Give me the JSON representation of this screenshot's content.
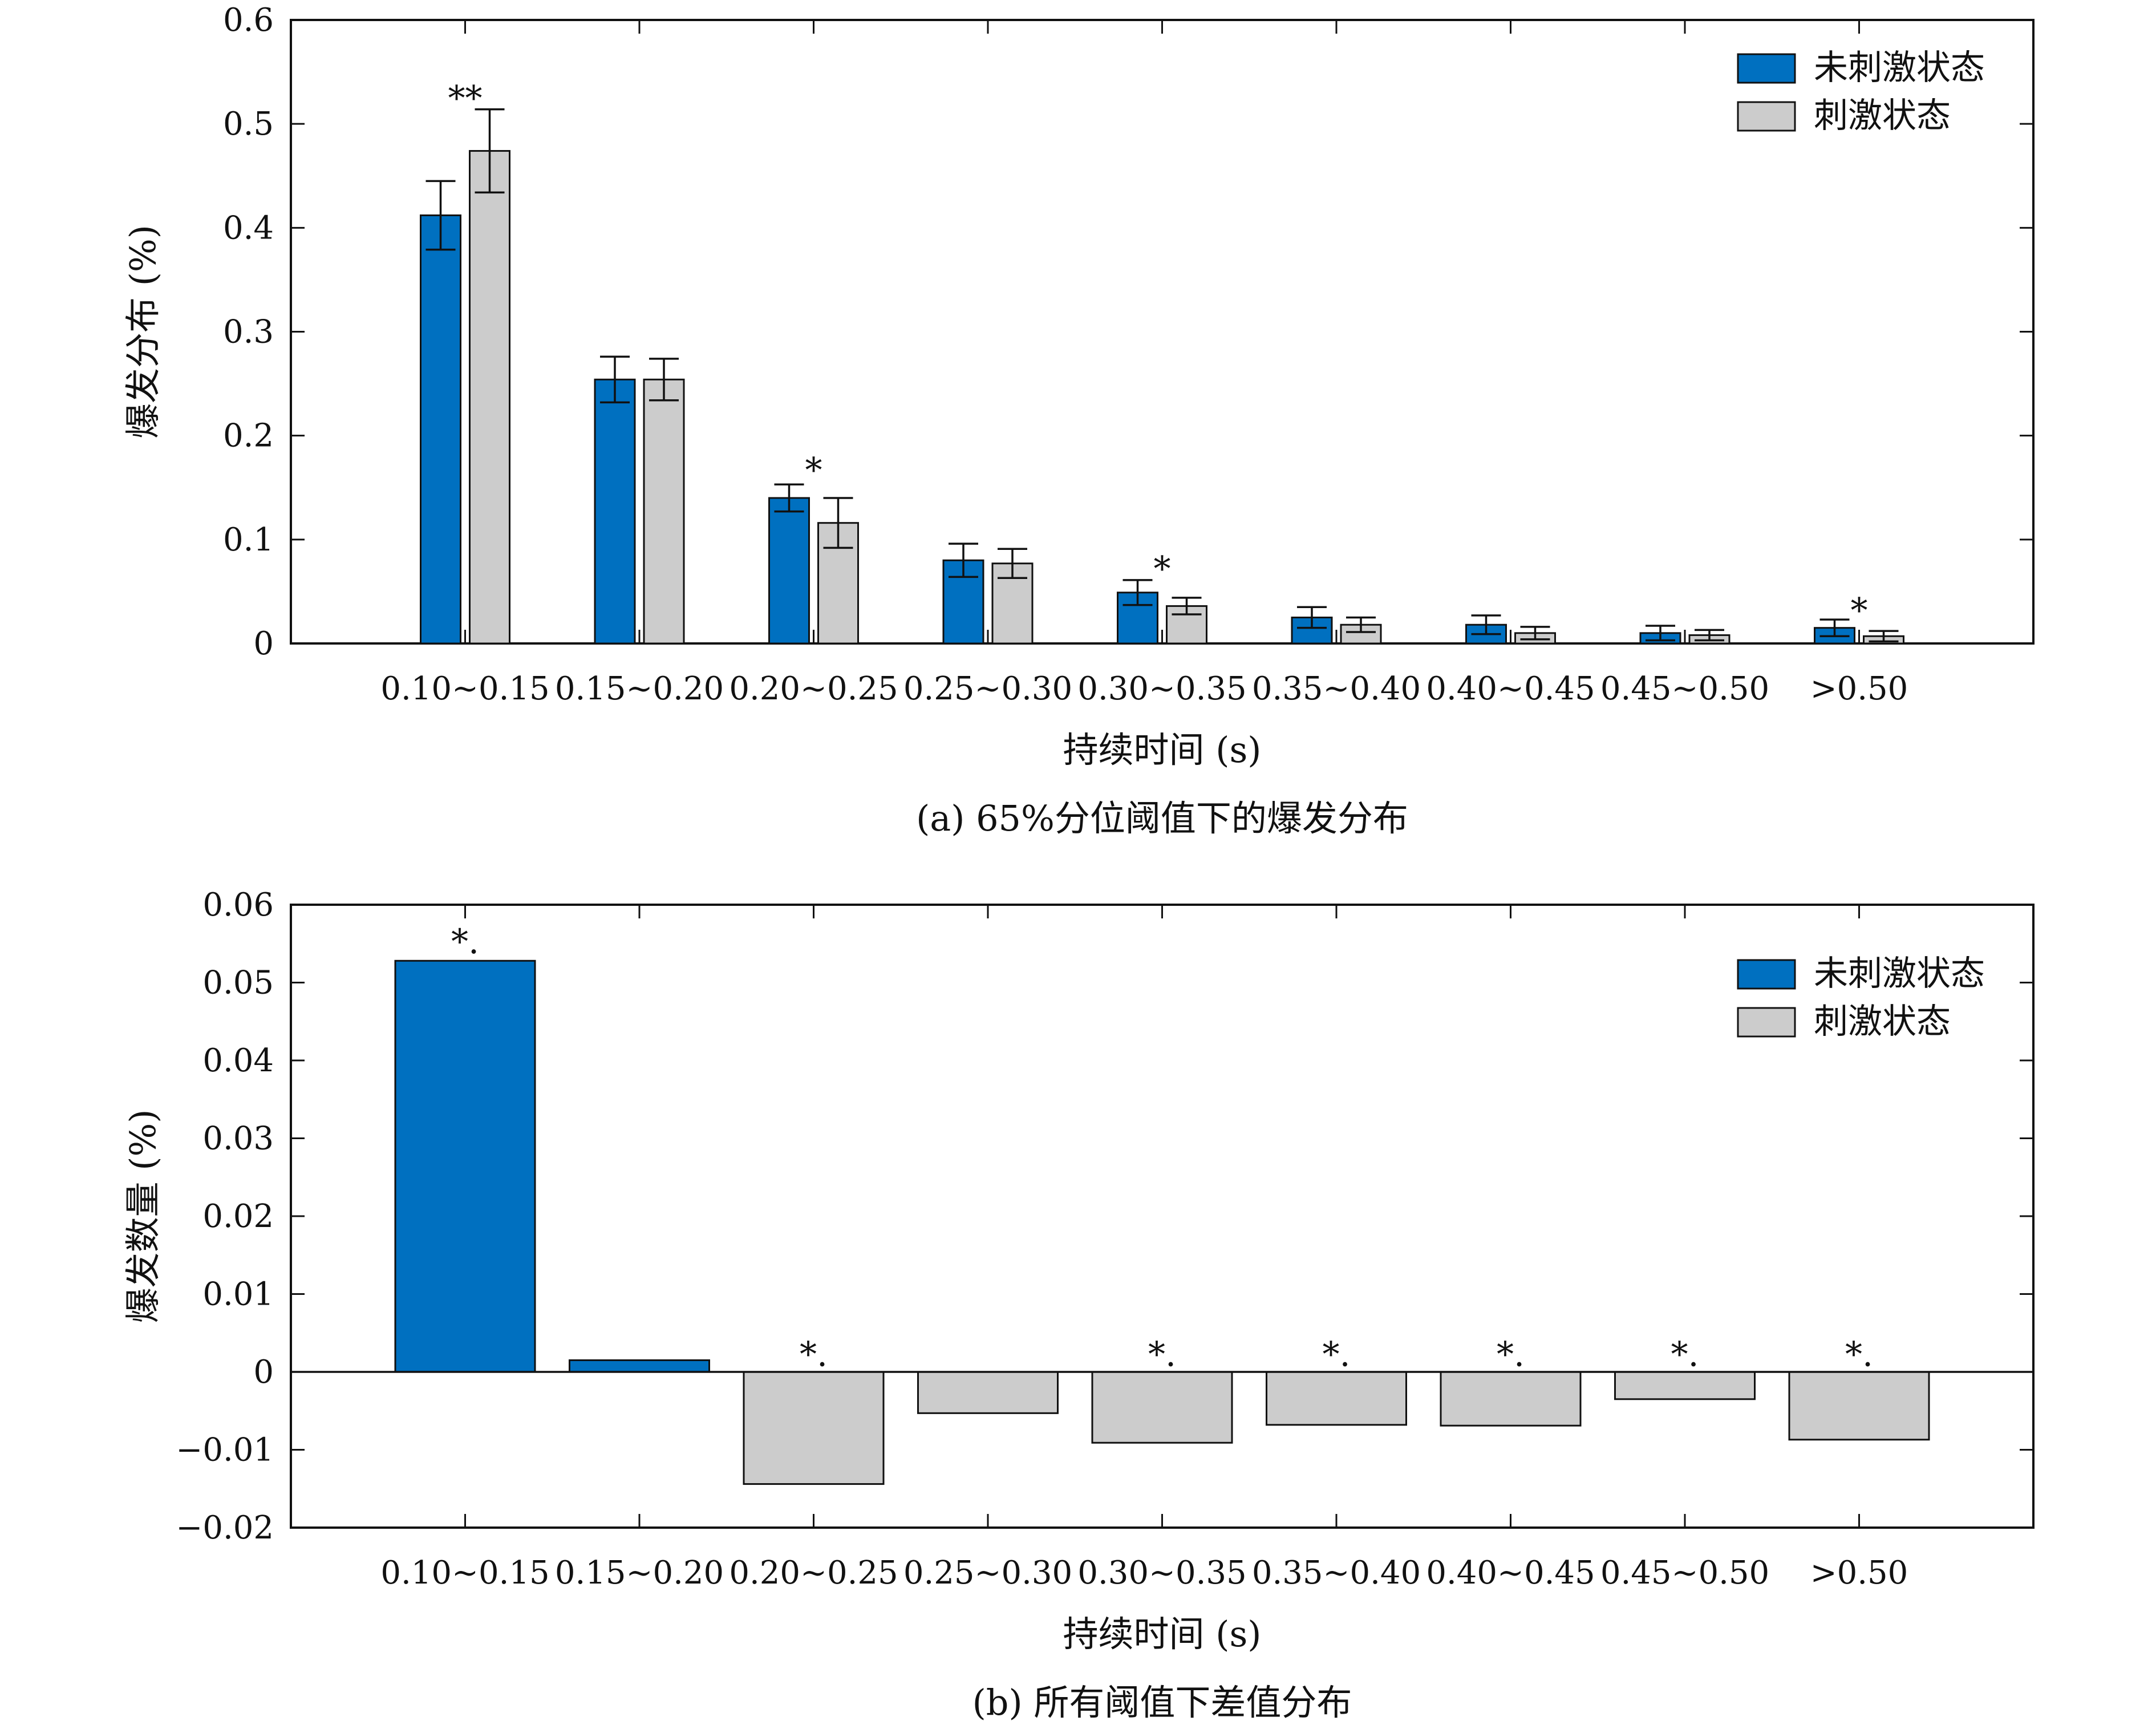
{
  "colors": {
    "unstimulated": "#0070C0",
    "stimulated": "#CCCCCC",
    "axis": "#111111"
  },
  "chart_data": [
    {
      "type": "bar",
      "caption": "(a) 65%分位阈值下的爆发分布",
      "xlabel": "持续时间 (s)",
      "ylabel": "爆发分布 (%)",
      "ylim": [
        0,
        0.6
      ],
      "yticks": [
        0,
        0.1,
        0.2,
        0.3,
        0.4,
        0.5,
        0.6
      ],
      "ytick_labels": [
        "0",
        "0.1",
        "0.2",
        "0.3",
        "0.4",
        "0.5",
        "0.6"
      ],
      "categories": [
        "0.10~0.15",
        "0.15~0.20",
        "0.20~0.25",
        "0.25~0.30",
        "0.30~0.35",
        "0.35~0.40",
        "0.40~0.45",
        "0.45~0.50",
        ">0.50"
      ],
      "legend_position": "top-right",
      "series": [
        {
          "name": "未刺激状态",
          "color": "#0070C0",
          "values": [
            0.412,
            0.254,
            0.14,
            0.08,
            0.049,
            0.025,
            0.018,
            0.01,
            0.015
          ],
          "errors": [
            0.033,
            0.022,
            0.013,
            0.016,
            0.012,
            0.01,
            0.009,
            0.007,
            0.008
          ]
        },
        {
          "name": "刺激状态",
          "color": "#CCCCCC",
          "values": [
            0.474,
            0.254,
            0.116,
            0.077,
            0.036,
            0.018,
            0.01,
            0.008,
            0.007
          ],
          "errors": [
            0.04,
            0.02,
            0.024,
            0.014,
            0.008,
            0.007,
            0.006,
            0.005,
            0.005
          ]
        }
      ],
      "annotations": [
        {
          "category_index": 0,
          "text": "**",
          "y": 0.53
        },
        {
          "category_index": 2,
          "text": "*",
          "y": 0.172
        },
        {
          "category_index": 4,
          "text": "*",
          "y": 0.077
        },
        {
          "category_index": 8,
          "text": "*",
          "y": 0.037
        }
      ]
    },
    {
      "type": "bar",
      "caption": "(b) 所有阈值下差值分布",
      "xlabel": "持续时间 (s)",
      "ylabel": "爆发数量 (%)",
      "ylim": [
        -0.02,
        0.06
      ],
      "yticks": [
        -0.02,
        -0.01,
        0,
        0.01,
        0.02,
        0.03,
        0.04,
        0.05,
        0.06
      ],
      "ytick_labels": [
        "−0.02",
        "−0.01",
        "0",
        "0.01",
        "0.02",
        "0.03",
        "0.04",
        "0.05",
        "0.06"
      ],
      "categories": [
        "0.10~0.15",
        "0.15~0.20",
        "0.20~0.25",
        "0.25~0.30",
        "0.30~0.35",
        "0.35~0.40",
        "0.40~0.45",
        "0.45~0.50",
        ">0.50"
      ],
      "legend_position": "top-right",
      "legend": [
        {
          "name": "未刺激状态",
          "color": "#0070C0"
        },
        {
          "name": "刺激状态",
          "color": "#CCCCCC"
        }
      ],
      "values": [
        0.0528,
        0.0015,
        -0.0144,
        -0.0053,
        -0.0091,
        -0.0068,
        -0.0069,
        -0.0035,
        -0.0087
      ],
      "annotations": [
        {
          "category_index": 0,
          "text": "*.",
          "y": 0.0545
        },
        {
          "category_index": 2,
          "text": "*.",
          "y": 0.0015
        },
        {
          "category_index": 4,
          "text": "*.",
          "y": 0.0015
        },
        {
          "category_index": 5,
          "text": "*.",
          "y": 0.0015
        },
        {
          "category_index": 6,
          "text": "*.",
          "y": 0.0015
        },
        {
          "category_index": 7,
          "text": "*.",
          "y": 0.0015
        },
        {
          "category_index": 8,
          "text": "*.",
          "y": 0.0015
        }
      ]
    }
  ]
}
